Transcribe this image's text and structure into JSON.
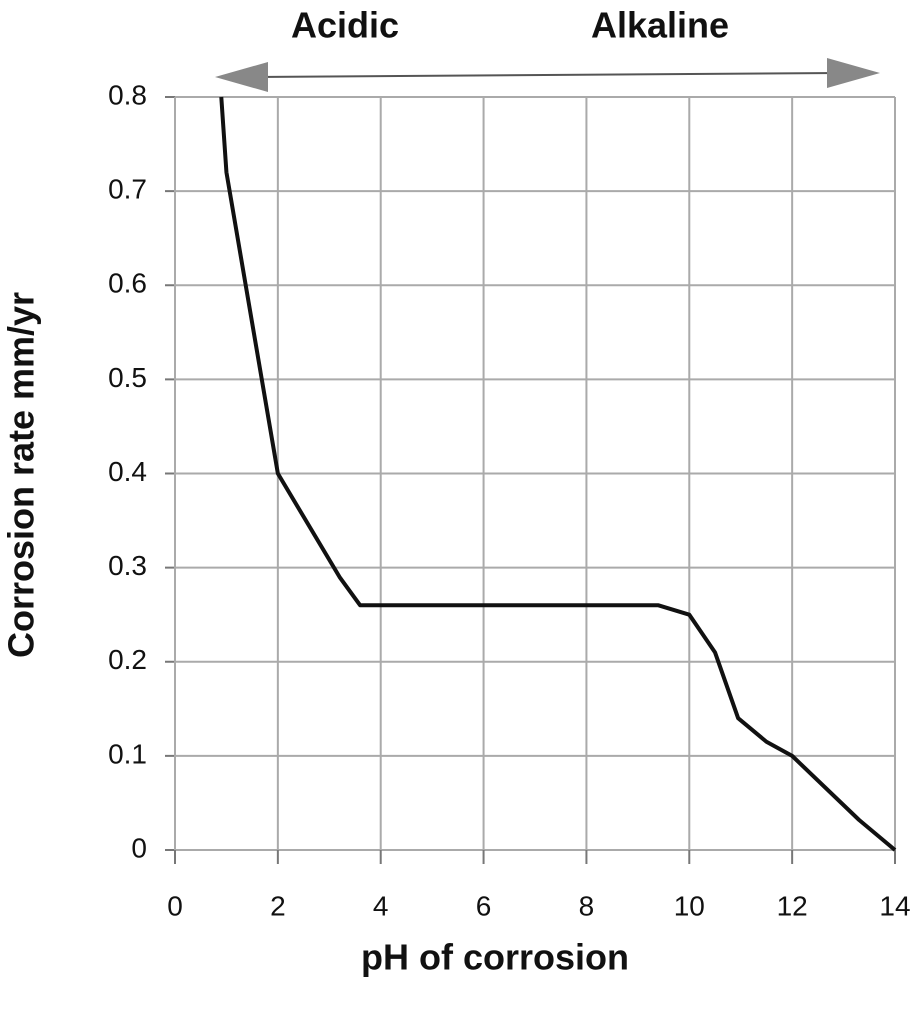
{
  "chart_data": {
    "type": "line",
    "xlabel": "pH of corrosion",
    "ylabel": "Corrosion rate mm/yr",
    "annotations": [
      "Acidic",
      "Alkaline"
    ],
    "x": [
      0.9,
      1.0,
      2.0,
      3.2,
      3.6,
      9.4,
      10.0,
      10.5,
      10.95,
      11.5,
      12.0,
      13.3,
      14.0
    ],
    "series": [
      {
        "name": "Corrosion rate",
        "color": "#111111",
        "values": [
          0.8,
          0.72,
          0.4,
          0.29,
          0.26,
          0.26,
          0.25,
          0.21,
          0.14,
          0.115,
          0.1,
          0.032,
          0
        ]
      }
    ],
    "xlim": [
      0,
      14
    ],
    "xticks": [
      0,
      2,
      4,
      6,
      8,
      10,
      12,
      14
    ],
    "ylim": [
      0,
      0.8
    ],
    "yticks": [
      0,
      0.1,
      0.2,
      0.3,
      0.4,
      0.5,
      0.6,
      0.7,
      0.8
    ],
    "grid": true
  }
}
